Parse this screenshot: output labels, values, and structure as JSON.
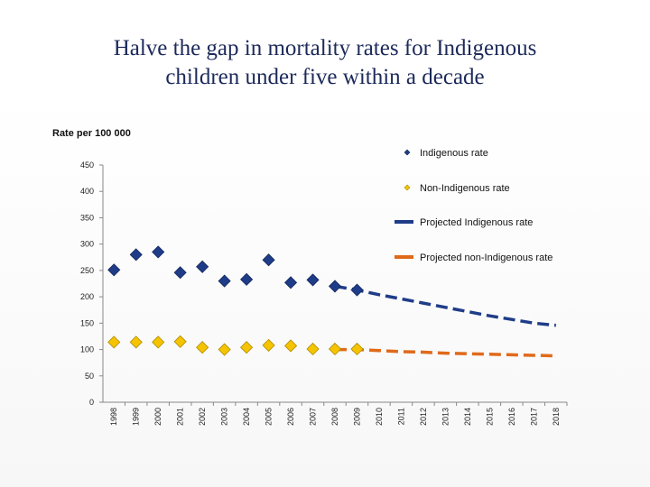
{
  "chart_data": {
    "type": "scatter",
    "title": "Halve the gap in mortality rates for Indigenous children under five within a decade",
    "title_lines": [
      "Halve the gap in mortality rates for Indigenous",
      "children under five within a decade"
    ],
    "ylabel": "Rate per 100 000",
    "xlabel": "",
    "ylim": [
      0,
      450
    ],
    "yticks": [
      0,
      50,
      100,
      150,
      200,
      250,
      300,
      350,
      400,
      450
    ],
    "x": [
      "1998",
      "1999",
      "2000",
      "2001",
      "2002",
      "2003",
      "2004",
      "2005",
      "2006",
      "2007",
      "2008",
      "2009",
      "2010",
      "2011",
      "2012",
      "2013",
      "2014",
      "2015",
      "2016",
      "2017",
      "2018"
    ],
    "grid": false,
    "legend_position": "top-right",
    "series": [
      {
        "name": "Indigenous rate",
        "kind": "markers",
        "marker": "diamond",
        "color": "#1f3c88",
        "values": [
          251,
          280,
          285,
          246,
          257,
          230,
          233,
          270,
          227,
          232,
          220,
          213,
          null,
          null,
          null,
          null,
          null,
          null,
          null,
          null,
          null
        ]
      },
      {
        "name": "Non-Indigenous rate",
        "kind": "markers",
        "marker": "diamond",
        "color": "#f5c400",
        "values": [
          114,
          114,
          114,
          115,
          104,
          100,
          104,
          108,
          107,
          101,
          101,
          101,
          null,
          null,
          null,
          null,
          null,
          null,
          null,
          null,
          null
        ]
      },
      {
        "name": "Projected Indigenous rate",
        "kind": "dashed-line",
        "color": "#1f3c88",
        "values": [
          null,
          null,
          null,
          null,
          null,
          null,
          null,
          null,
          null,
          null,
          220,
          213,
          204,
          196,
          188,
          180,
          172,
          164,
          157,
          150,
          146
        ]
      },
      {
        "name": "Projected non-Indigenous rate",
        "kind": "dashed-line",
        "color": "#e06a1b",
        "values": [
          null,
          null,
          null,
          null,
          null,
          null,
          null,
          null,
          null,
          null,
          100,
          100,
          98,
          96,
          95,
          93,
          92,
          91,
          90,
          89,
          88
        ]
      }
    ]
  }
}
